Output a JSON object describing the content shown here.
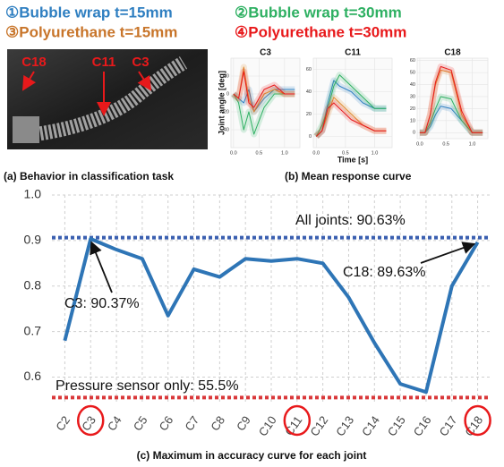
{
  "legend": [
    {
      "label": "①Bubble wrap  t=15mm",
      "color": "#2f7fc1"
    },
    {
      "label": "②Bubble wrap  t=30mm",
      "color": "#2eb062"
    },
    {
      "label": "③Polyurethane t=15mm",
      "color": "#c8752a"
    },
    {
      "label": "④Polyurethane t=30mm",
      "color": "#e8191b"
    }
  ],
  "photo": {
    "labels": [
      "C18",
      "C11",
      "C3"
    ]
  },
  "captions": [
    "(a) Behavior in classification task",
    "(b) Mean response curve",
    "(c) Maximum in accuracy curve for each joint"
  ],
  "chart_data": [
    {
      "type": "line",
      "categories": [
        "C2",
        "C3",
        "C4",
        "C5",
        "C6",
        "C7",
        "C8",
        "C9",
        "C10",
        "C11",
        "C12",
        "C13",
        "C14",
        "C15",
        "C16",
        "C17",
        "C18"
      ],
      "values": [
        0.68,
        0.9037,
        0.88,
        0.86,
        0.735,
        0.837,
        0.82,
        0.86,
        0.855,
        0.86,
        0.85,
        0.775,
        0.675,
        0.585,
        0.567,
        0.8,
        0.8963
      ],
      "color": "#2e75b6",
      "ylim": [
        0.54,
        1.0
      ],
      "yticks": [
        0.6,
        0.7,
        0.8,
        0.9,
        {
          "value": 1.0,
          "label": "1.0"
        }
      ],
      "grid": true,
      "reference_lines": [
        {
          "value": 0.9063,
          "color": "#3a5fb0"
        },
        {
          "value": 0.555,
          "color": "#d9383a"
        }
      ],
      "annotations": [
        "All joints: 90.63%",
        "Pressure sensor only: 55.5%",
        "C3: 90.37%",
        "C18: 89.63%"
      ],
      "highlight_indices": [
        1,
        9,
        16
      ]
    },
    {
      "type": "line",
      "title": "C3",
      "ylabel": "Joint angle [deg]",
      "x": [
        0,
        0.1,
        0.2,
        0.3,
        0.4,
        0.6,
        0.8,
        1.0,
        1.2
      ],
      "xlim": [
        -0.05,
        1.3
      ],
      "xticks": [
        {
          "value": 0,
          "label": "0.0"
        },
        {
          "value": 0.5,
          "label": "0.5"
        },
        {
          "value": 1,
          "label": "1.0"
        }
      ],
      "ylim": [
        -60,
        40
      ],
      "yticks": [
        -40,
        -20,
        0,
        20
      ],
      "series": [
        {
          "color": "#2f7fc1",
          "values": [
            0,
            -5,
            -10,
            5,
            -20,
            -5,
            5,
            5,
            5
          ]
        },
        {
          "color": "#2eb062",
          "values": [
            0,
            -10,
            -40,
            -20,
            -45,
            -15,
            0,
            0,
            0
          ]
        },
        {
          "color": "#e08a2e",
          "values": [
            0,
            -5,
            30,
            -5,
            -20,
            0,
            5,
            0,
            0
          ]
        },
        {
          "color": "#e8191b",
          "values": [
            0,
            -5,
            25,
            -10,
            -15,
            5,
            10,
            0,
            0
          ]
        }
      ]
    },
    {
      "type": "line",
      "title": "C11",
      "xlabel": "Time [s]",
      "x": [
        0,
        0.1,
        0.2,
        0.3,
        0.4,
        0.6,
        0.8,
        1.0,
        1.2
      ],
      "xlim": [
        -0.05,
        1.3
      ],
      "xticks": [
        {
          "value": 0,
          "label": "0.0"
        },
        {
          "value": 0.5,
          "label": "0.5"
        },
        {
          "value": 1,
          "label": "1.0"
        }
      ],
      "ylim": [
        -10,
        70
      ],
      "yticks": [
        0,
        20,
        40,
        60
      ],
      "series": [
        {
          "color": "#2f7fc1",
          "values": [
            0,
            5,
            30,
            50,
            45,
            40,
            30,
            25,
            25
          ]
        },
        {
          "color": "#2eb062",
          "values": [
            0,
            10,
            25,
            45,
            55,
            45,
            35,
            25,
            25
          ]
        },
        {
          "color": "#e08a2e",
          "values": [
            0,
            5,
            20,
            35,
            30,
            20,
            10,
            5,
            5
          ]
        },
        {
          "color": "#e8191b",
          "values": [
            0,
            5,
            25,
            30,
            25,
            15,
            10,
            5,
            5
          ]
        }
      ]
    },
    {
      "type": "line",
      "title": "C18",
      "x": [
        0,
        0.1,
        0.2,
        0.3,
        0.4,
        0.6,
        0.8,
        1.0,
        1.2
      ],
      "xlim": [
        -0.05,
        1.3
      ],
      "xticks": [
        {
          "value": 0,
          "label": "0.0"
        },
        {
          "value": 0.5,
          "label": "0.5"
        },
        {
          "value": 1,
          "label": "1.0"
        }
      ],
      "ylim": [
        -5,
        62
      ],
      "yticks": [
        0,
        10,
        20,
        30,
        40,
        50,
        60
      ],
      "series": [
        {
          "color": "#2f7fc1",
          "values": [
            0,
            0,
            5,
            15,
            22,
            20,
            10,
            0,
            0
          ]
        },
        {
          "color": "#2eb062",
          "values": [
            0,
            0,
            8,
            20,
            30,
            28,
            10,
            0,
            0
          ]
        },
        {
          "color": "#e08a2e",
          "values": [
            0,
            0,
            15,
            40,
            52,
            50,
            15,
            0,
            0
          ]
        },
        {
          "color": "#e8191b",
          "values": [
            0,
            0,
            15,
            42,
            55,
            52,
            18,
            0,
            0
          ]
        }
      ]
    }
  ]
}
